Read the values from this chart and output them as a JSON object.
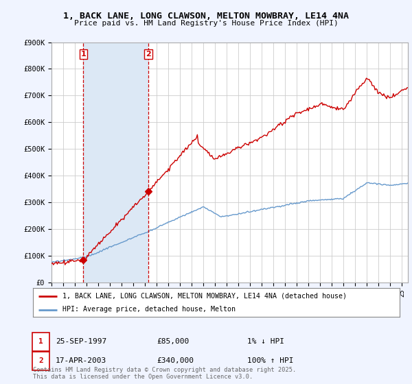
{
  "title": "1, BACK LANE, LONG CLAWSON, MELTON MOWBRAY, LE14 4NA",
  "subtitle": "Price paid vs. HM Land Registry's House Price Index (HPI)",
  "ylim": [
    0,
    900000
  ],
  "yticks": [
    0,
    100000,
    200000,
    300000,
    400000,
    500000,
    600000,
    700000,
    800000,
    900000
  ],
  "ytick_labels": [
    "£0",
    "£100K",
    "£200K",
    "£300K",
    "£400K",
    "£500K",
    "£600K",
    "£700K",
    "£800K",
    "£900K"
  ],
  "xlim_start": 1995.0,
  "xlim_end": 2025.5,
  "transaction1_x": 1997.73,
  "transaction1_y": 85000,
  "transaction2_x": 2003.29,
  "transaction2_y": 340000,
  "transaction1_date": "25-SEP-1997",
  "transaction1_price": "£85,000",
  "transaction1_hpi": "1% ↓ HPI",
  "transaction2_date": "17-APR-2003",
  "transaction2_price": "£340,000",
  "transaction2_hpi": "100% ↑ HPI",
  "line1_color": "#cc0000",
  "line2_color": "#6699cc",
  "vline_color": "#cc0000",
  "fill_color": "#dce8f5",
  "legend1": "1, BACK LANE, LONG CLAWSON, MELTON MOWBRAY, LE14 4NA (detached house)",
  "legend2": "HPI: Average price, detached house, Melton",
  "footer": "Contains HM Land Registry data © Crown copyright and database right 2025.\nThis data is licensed under the Open Government Licence v3.0.",
  "bg_color": "#f0f4ff",
  "plot_bg": "#ffffff",
  "grid_color": "#cccccc"
}
